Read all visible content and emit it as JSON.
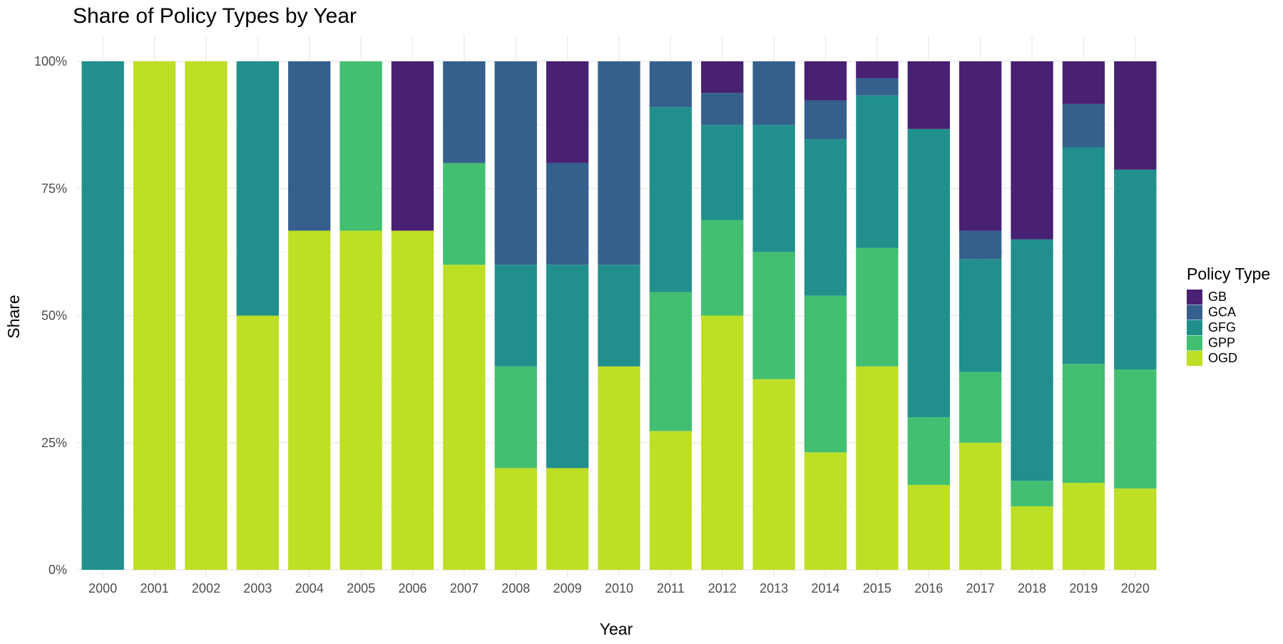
{
  "chart_data": {
    "type": "bar",
    "stacked": true,
    "title": "Share of Policy Types by Year",
    "xlabel": "Year",
    "ylabel": "Share",
    "ylim": [
      0,
      1
    ],
    "y_ticks": [
      "0%",
      "25%",
      "50%",
      "75%",
      "100%"
    ],
    "grid": true,
    "legend_position": "right",
    "legend_title": "Policy Type",
    "categories": [
      "2000",
      "2001",
      "2002",
      "2003",
      "2004",
      "2005",
      "2006",
      "2007",
      "2008",
      "2009",
      "2010",
      "2011",
      "2012",
      "2013",
      "2014",
      "2015",
      "2016",
      "2017",
      "2018",
      "2019",
      "2020"
    ],
    "series": [
      {
        "name": "OGD",
        "color": "#bddf26",
        "values": [
          0,
          1,
          1,
          0.5,
          0.667,
          0.667,
          0.667,
          0.6,
          0.2,
          0.2,
          0.4,
          0.273,
          0.5,
          0.375,
          0.231,
          0.4,
          0.167,
          0.25,
          0.125,
          0.171,
          0.16
        ]
      },
      {
        "name": "GPP",
        "color": "#43bf71",
        "values": [
          0,
          0,
          0,
          0,
          0,
          0.333,
          0,
          0.2,
          0.2,
          0,
          0,
          0.273,
          0.188,
          0.25,
          0.308,
          0.233,
          0.133,
          0.139,
          0.05,
          0.234,
          0.234
        ]
      },
      {
        "name": "GFG",
        "color": "#21908d",
        "values": [
          1,
          0,
          0,
          0.5,
          0,
          0,
          0,
          0,
          0.2,
          0.4,
          0.2,
          0.364,
          0.187,
          0.25,
          0.308,
          0.3,
          0.567,
          0.222,
          0.475,
          0.426,
          0.393
        ]
      },
      {
        "name": "GCA",
        "color": "#35608d",
        "values": [
          0,
          0,
          0,
          0,
          0.333,
          0,
          0,
          0.2,
          0.4,
          0.2,
          0.4,
          0.09,
          0.063,
          0.125,
          0.076,
          0.034,
          0,
          0.056,
          0,
          0.085,
          0
        ]
      },
      {
        "name": "GB",
        "color": "#482173",
        "values": [
          0,
          0,
          0,
          0,
          0,
          0,
          0.333,
          0,
          0,
          0.2,
          0,
          0,
          0.062,
          0,
          0.077,
          0.033,
          0.133,
          0.333,
          0.35,
          0.084,
          0.213
        ]
      }
    ],
    "legend_order": [
      "GB",
      "GCA",
      "GFG",
      "GPP",
      "OGD"
    ]
  }
}
